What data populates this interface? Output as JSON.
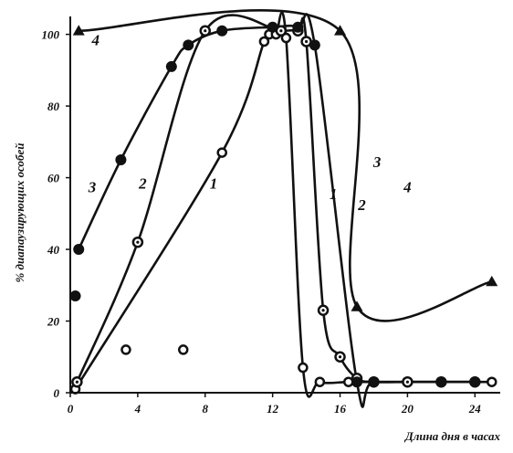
{
  "chart_data": {
    "type": "line",
    "title": "",
    "xlabel": "Длина дня в часах",
    "ylabel": "% диапаузирующих особей",
    "xlim": [
      0,
      25.5
    ],
    "ylim": [
      0,
      105
    ],
    "x_ticks": [
      0,
      4,
      8,
      12,
      16,
      20,
      24
    ],
    "y_ticks": [
      0,
      20,
      40,
      60,
      80,
      100
    ],
    "grid": false,
    "legend": "none",
    "series": [
      {
        "name": "1",
        "marker": "open-circle",
        "x": [
          0.3,
          9,
          11.5,
          11.8,
          12.2,
          12.8,
          13.8,
          14.8,
          16.5,
          18,
          20,
          22,
          24,
          25
        ],
        "y": [
          1,
          67,
          98,
          100,
          100,
          99,
          7,
          3,
          3,
          3,
          3,
          3,
          3,
          3
        ],
        "extra_points": {
          "x": [
            3.3,
            6.7
          ],
          "y": [
            12,
            12
          ]
        }
      },
      {
        "name": "2",
        "marker": "open-dot",
        "x": [
          0.4,
          4,
          8,
          12.5,
          13.5,
          14,
          15,
          16,
          17,
          18,
          20,
          22,
          24
        ],
        "y": [
          3,
          42,
          101,
          101,
          101,
          98,
          23,
          10,
          4,
          3,
          3,
          3,
          3
        ],
        "extra_points": {
          "x": [],
          "y": []
        }
      },
      {
        "name": "3",
        "marker": "filled-circle",
        "x": [
          0.5,
          3,
          6,
          7,
          9,
          12,
          13.5,
          14.5,
          17,
          18,
          22,
          24
        ],
        "y": [
          40,
          65,
          91,
          97,
          101,
          102,
          102,
          97,
          3,
          3,
          3,
          3
        ],
        "extra_points": {
          "x": [
            0.3
          ],
          "y": [
            27
          ]
        }
      },
      {
        "name": "4",
        "marker": "filled-triangle",
        "x": [
          0.5,
          16,
          17,
          25
        ],
        "y": [
          101,
          101,
          24,
          31
        ],
        "extra_points": {
          "x": [],
          "y": []
        }
      }
    ]
  }
}
